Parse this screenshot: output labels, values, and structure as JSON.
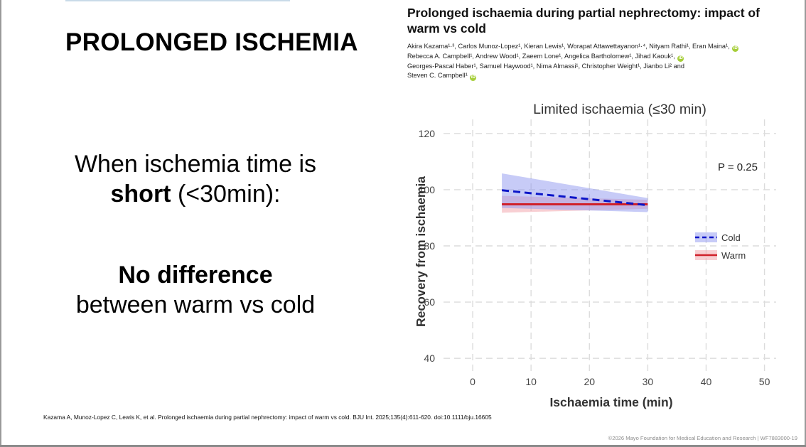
{
  "slide": {
    "title": "PROLONGED ISCHEMIA",
    "statement_line1": "When ischemia time is",
    "statement_line2_bold": "short",
    "statement_line2_rest": " (<30min):",
    "conclusion_bold": "No difference",
    "conclusion_rest": "between warm vs cold"
  },
  "paper": {
    "title": "Prolonged ischaemia during partial nephrectomy: impact of warm vs cold",
    "authors_line1": "Akira Kazama¹·³, Carlos Munoz-Lopez¹, Kieran Lewis¹, Worapat Attawettayanon¹·⁴, Nityam Rathi¹, Eran Maina¹,",
    "authors_line2": "Rebecca A. Campbell¹, Andrew Wood¹, Zaeem Lone¹, Angelica Bartholomew¹, Jihad Kaouk¹,",
    "authors_line3": "Georges-Pascal Haber¹, Samuel Haywood¹, Nima Almassi¹, Christopher Weight¹, Jianbo Li² and",
    "authors_line4": "Steven C. Campbell¹",
    "orcid_glyph": "iD"
  },
  "chart_data": {
    "type": "line",
    "title": "Limited ischaemia (≤30 min)",
    "xlabel": "Ischaemia time (min)",
    "ylabel": "Recovery from ischaemia",
    "xlim": [
      -5,
      52
    ],
    "ylim": [
      35,
      125
    ],
    "xticks": [
      0,
      10,
      20,
      30,
      40,
      50
    ],
    "yticks": [
      40,
      60,
      80,
      100,
      120
    ],
    "grid": true,
    "annotation": "P = 0.25",
    "legend_position": "right",
    "series": [
      {
        "name": "Cold",
        "style": "dashed",
        "color": "#0a14c8",
        "ribbon_color": "#8f97f0",
        "x": [
          5,
          30
        ],
        "y": [
          99.8,
          94.5
        ],
        "lower": [
          93.5,
          92.0
        ],
        "upper": [
          105.8,
          97.0
        ]
      },
      {
        "name": "Warm",
        "style": "solid",
        "color": "#d0202a",
        "ribbon_color": "#f2a0a8",
        "x": [
          5,
          30
        ],
        "y": [
          94.8,
          94.8
        ],
        "lower": [
          91.8,
          93.2
        ],
        "upper": [
          97.8,
          96.4
        ]
      }
    ]
  },
  "footer": {
    "citation": "Kazama A, Munoz-Lopez C, Lewis K, et al. Prolonged ischaemia during partial nephrectomy: impact of warm vs cold. BJU Int. 2025;135(4):611-620. doi:10.1111/bju.16605",
    "copyright": "©2026 Mayo Foundation for Medical Education and Research  |  WF7883000-19"
  }
}
